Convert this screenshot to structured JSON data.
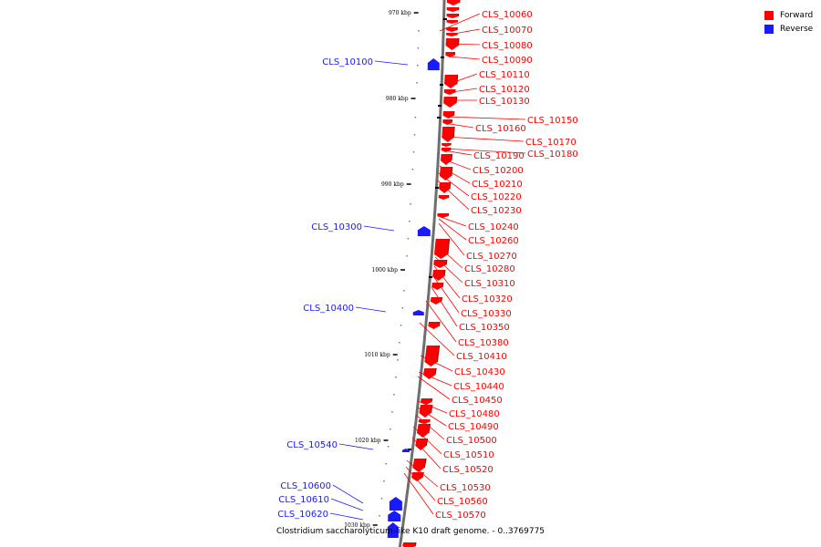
{
  "colors": {
    "forward": "#ff0000",
    "reverse": "#1a1aff",
    "backbone": "#8a8a8a"
  },
  "legend": [
    {
      "label": "Forward",
      "color": "#ff0000"
    },
    {
      "label": "Reverse",
      "color": "#1a1aff"
    }
  ],
  "caption": "Clostridium saccharolyticum-like K10 draft genome. - 0..3769775",
  "ruler": [
    "970 kbp",
    "980 kbp",
    "990 kbp",
    "1000 kbp",
    "1010 kbp",
    "1020 kbp",
    "1030 kbp"
  ],
  "forward_labels": [
    "CLS_10060",
    "CLS_10070",
    "CLS_10080",
    "CLS_10090",
    "CLS_10110",
    "CLS_10120",
    "CLS_10130",
    "CLS_10150",
    "CLS_10160",
    "CLS_10170",
    "CLS_10180",
    "CLS_10190",
    "CLS_10200",
    "CLS_10210",
    "CLS_10220",
    "CLS_10230",
    "CLS_10240",
    "CLS_10260",
    "CLS_10270",
    "CLS_10280",
    "CLS_10310",
    "CLS_10320",
    "CLS_10330",
    "CLS_10350",
    "CLS_10380",
    "CLS_10410",
    "CLS_10430",
    "CLS_10440",
    "CLS_10450",
    "CLS_10480",
    "CLS_10490",
    "CLS_10500",
    "CLS_10510",
    "CLS_10520",
    "CLS_10530",
    "CLS_10560",
    "CLS_10570"
  ],
  "reverse_labels": [
    "CLS_10100",
    "CLS_10300",
    "CLS_10400",
    "CLS_10540",
    "CLS_10600",
    "CLS_10610",
    "CLS_10620"
  ]
}
